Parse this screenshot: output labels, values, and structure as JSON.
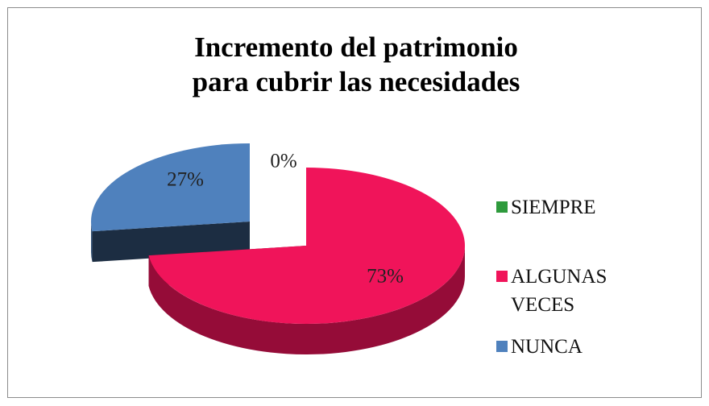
{
  "chart_data": {
    "type": "pie",
    "title": [
      "Incremento del patrimonio",
      "para cubrir las necesidades"
    ],
    "categories": [
      "SIEMPRE",
      "ALGUNAS VECES",
      "NUNCA"
    ],
    "values": [
      0,
      73,
      27
    ],
    "value_labels": [
      "0%",
      "73%",
      "27%"
    ],
    "colors": [
      "#2e9a3c",
      "#f0145a",
      "#4f81bd"
    ],
    "legend": "right"
  }
}
